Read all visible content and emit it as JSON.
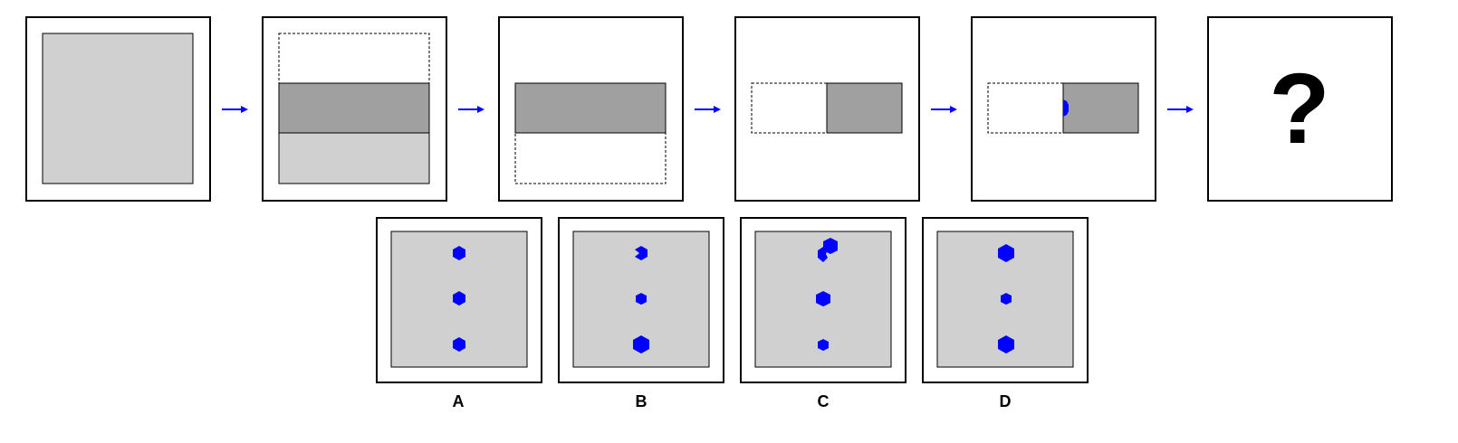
{
  "sequence": {
    "question_mark": "?",
    "arrow_color": "#0000ff",
    "steps": [
      {
        "name": "step-1-unfolded-square"
      },
      {
        "name": "step-2-fold-top-down"
      },
      {
        "name": "step-3-folded-rectangle"
      },
      {
        "name": "step-4-fold-left-right"
      },
      {
        "name": "step-5-punched-hole"
      },
      {
        "name": "step-6-unknown"
      }
    ]
  },
  "colors": {
    "paper": "#d0d0d0",
    "folded_paper": "#a0a0a0",
    "hole": "#0000ff",
    "frame": "#000000"
  },
  "options": [
    {
      "label": "A"
    },
    {
      "label": "B"
    },
    {
      "label": "C"
    },
    {
      "label": "D"
    }
  ]
}
